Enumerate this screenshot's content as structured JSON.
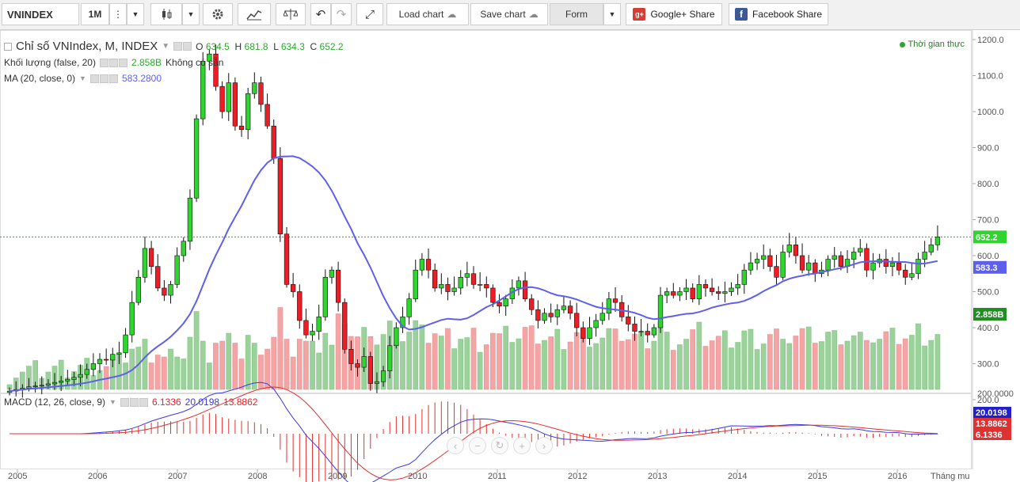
{
  "toolbar": {
    "symbol": "VNINDEX",
    "interval": "1M",
    "load_chart": "Load chart",
    "save_chart": "Save chart",
    "form": "Form",
    "google_share": "Google+ Share",
    "facebook_share": "Facebook Share"
  },
  "legend": {
    "title": "Chỉ số VNIndex, M, INDEX",
    "o_label": "O",
    "o": "634.5",
    "h_label": "H",
    "h": "681.8",
    "l_label": "L",
    "l": "634.3",
    "c_label": "C",
    "c": "652.2",
    "volume_label": "Khối lượng (false, 20)",
    "volume_value": "2.858B",
    "volume_note": "Không có sẵn",
    "ma_label": "MA (20, close, 0)",
    "ma_value": "583.2800",
    "macd_label": "MACD (12, 26, close, 9)",
    "macd_hist": "6.1336",
    "macd_line": "20.0198",
    "macd_signal": "13.8862"
  },
  "realtime": "Thời gian thực",
  "price_axis": [
    "1200.0",
    "1100.0",
    "1000.0",
    "900.0",
    "800.0",
    "700.0",
    "600.0",
    "500.0",
    "400.0",
    "300.0",
    "200.0"
  ],
  "macd_axis_top": "200.0000",
  "last_price_tag": "652.2",
  "ma_tag": "583.3",
  "volume_tag": "2.858B",
  "macd_tags": [
    "20.0198",
    "13.8862",
    "6.1336"
  ],
  "time_axis": [
    "2005",
    "2006",
    "2007",
    "2008",
    "2009",
    "2010",
    "2011",
    "2012",
    "2013",
    "2014",
    "2015",
    "2016"
  ],
  "time_unit": "Tháng mu",
  "nav_icons": [
    "‹",
    "−",
    "↻",
    "+",
    "›"
  ],
  "colors": {
    "up": "#2fd42f",
    "down": "#ee1c25",
    "ma": "#5f5fee",
    "vol_up": "#9bd29b",
    "vol_down": "#f4a4a4",
    "macd_line": "#3a3ae0",
    "macd_signal": "#e03030"
  },
  "chart_data": {
    "type": "candlestick",
    "series_closes": [
      [
        224,
        228,
        232,
        236,
        238,
        240,
        244,
        248,
        252,
        256,
        262,
        270,
        284,
        300,
        312,
        310,
        326,
        330,
        380,
        470,
        540,
        620,
        570,
        510,
        490,
        520,
        600,
        640,
        760,
        980,
        1140,
        1160,
        1070,
        1000,
        1080,
        960,
        950,
        1050,
        1080,
        1020,
        960,
        870,
        660,
        520,
        500,
        420,
        380,
        390,
        430,
        540,
        560,
        470,
        340,
        300,
        290,
        320,
        245,
        250,
        280,
        350,
        400,
        430,
        480,
        560,
        590,
        560,
        510,
        520,
        500,
        510,
        540,
        550,
        520,
        520,
        510,
        470,
        460,
        480,
        510,
        530,
        480,
        450,
        420,
        440,
        430,
        450,
        460,
        440,
        400,
        370,
        400,
        420,
        440,
        480,
        470,
        430,
        410,
        390,
        390,
        380,
        400,
        490,
        500,
        490,
        500,
        510,
        480,
        520,
        510,
        500,
        495,
        500,
        510,
        520,
        560,
        580,
        590,
        600,
        570,
        540,
        610,
        630,
        600,
        560,
        580,
        550,
        560,
        590,
        600,
        570,
        590,
        610,
        620,
        560,
        580,
        590,
        570,
        580,
        560,
        540,
        550,
        590,
        610,
        630,
        652
      ]
    ]
  }
}
